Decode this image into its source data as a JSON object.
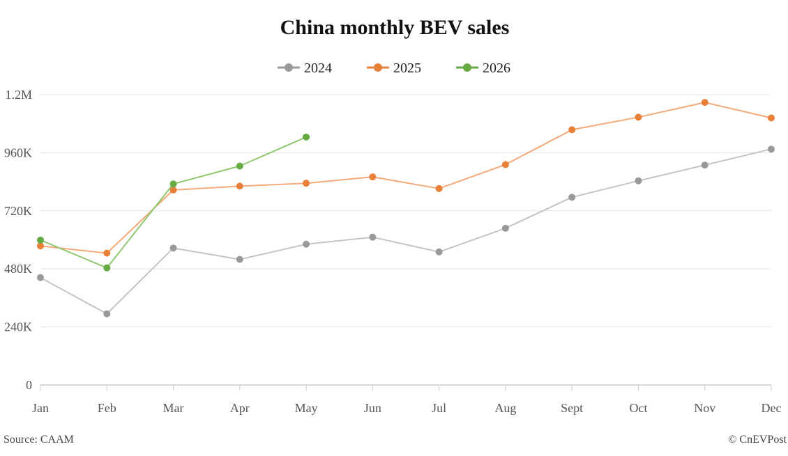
{
  "chart_data": {
    "type": "line",
    "title": "China monthly BEV sales",
    "xlabel": "",
    "ylabel": "",
    "categories": [
      "Jan",
      "Feb",
      "Mar",
      "Apr",
      "May",
      "Jun",
      "Jul",
      "Aug",
      "Sept",
      "Oct",
      "Nov",
      "Dec"
    ],
    "y_ticks": [
      0,
      240000,
      480000,
      720000,
      960000,
      1200000
    ],
    "y_tick_labels": [
      "0",
      "240K",
      "480K",
      "720K",
      "960K",
      "1.2M"
    ],
    "ylim": [
      0,
      1200000
    ],
    "grid": true,
    "legend_position": "top",
    "series": [
      {
        "name": "2024",
        "color": "#999999",
        "line_color": "#c4c4c4",
        "values": [
          444000,
          294000,
          566000,
          519000,
          582000,
          611000,
          550000,
          648000,
          776000,
          844000,
          909000,
          975000
        ]
      },
      {
        "name": "2025",
        "color": "#e8803a",
        "line_color": "#f5a878",
        "values": [
          575000,
          545000,
          806000,
          822000,
          834000,
          860000,
          812000,
          911000,
          1055000,
          1107000,
          1168000,
          1104000
        ]
      },
      {
        "name": "2026",
        "color": "#66aa44",
        "line_color": "#8fc870",
        "values": [
          599000,
          484000,
          831000,
          905000,
          1025000,
          null,
          null,
          null,
          null,
          null,
          null,
          null
        ]
      }
    ]
  },
  "footer": {
    "source": "Source: CAAM",
    "credit": "© CnEVPost"
  }
}
